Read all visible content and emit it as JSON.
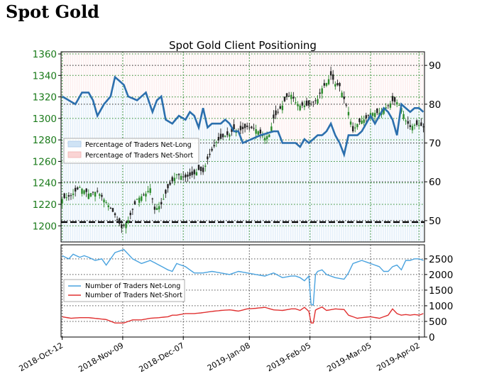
{
  "page_heading": "Spot Gold",
  "colors": {
    "price_up": "#2a8a2a",
    "price_down": "#222222",
    "long_pct_line": "#2b6fad",
    "net_long_line": "#4aa3df",
    "net_short_line": "#e03030",
    "long_fill": "#cfe3f5",
    "short_fill": "#fad4d4",
    "left_tick_color": "#1a7a1a"
  },
  "chart_data": [
    {
      "type": "line",
      "title": "Spot Gold Client Positioning",
      "left_axis": {
        "ylim": [
          1185,
          1362
        ],
        "ticks": [
          "1200",
          "1220",
          "1240",
          "1260",
          "1280",
          "1300",
          "1320",
          "1340",
          "1360"
        ]
      },
      "right_axis": {
        "ylim": [
          44.5,
          93.5
        ],
        "ticks": [
          "50",
          "60",
          "70",
          "80",
          "90"
        ]
      },
      "x_dates": [
        "2018-Oct-12",
        "2018-Nov-09",
        "2018-Dec-07",
        "2019-Jan-08",
        "2019-Feb-05",
        "2019-Mar-05",
        "2019-Apr-02"
      ],
      "grid": true,
      "legend": {
        "placement": "upper-left",
        "entries": [
          "Percentage of Traders Net-Long",
          "Percentage of Traders Net-Short"
        ]
      },
      "price_anchors": [
        [
          0,
          1225
        ],
        [
          4,
          1228
        ],
        [
          8,
          1236
        ],
        [
          12,
          1230
        ],
        [
          16,
          1232
        ],
        [
          20,
          1222
        ],
        [
          24,
          1210
        ],
        [
          27,
          1198
        ],
        [
          30,
          1205
        ],
        [
          34,
          1225
        ],
        [
          38,
          1230
        ],
        [
          40,
          1235
        ],
        [
          42,
          1215
        ],
        [
          45,
          1220
        ],
        [
          48,
          1235
        ],
        [
          52,
          1248
        ],
        [
          56,
          1245
        ],
        [
          60,
          1248
        ],
        [
          62,
          1252
        ],
        [
          64,
          1250
        ],
        [
          66,
          1262
        ],
        [
          70,
          1278
        ],
        [
          74,
          1284
        ],
        [
          76,
          1285
        ],
        [
          78,
          1290
        ],
        [
          80,
          1288
        ],
        [
          84,
          1292
        ],
        [
          88,
          1290
        ],
        [
          92,
          1282
        ],
        [
          94,
          1285
        ],
        [
          96,
          1300
        ],
        [
          100,
          1312
        ],
        [
          102,
          1320
        ],
        [
          104,
          1322
        ],
        [
          106,
          1315
        ],
        [
          108,
          1312
        ],
        [
          112,
          1312
        ],
        [
          116,
          1318
        ],
        [
          118,
          1328
        ],
        [
          120,
          1333
        ],
        [
          122,
          1340
        ],
        [
          124,
          1332
        ],
        [
          126,
          1330
        ],
        [
          128,
          1318
        ],
        [
          130,
          1306
        ],
        [
          132,
          1288
        ],
        [
          134,
          1295
        ],
        [
          136,
          1298
        ],
        [
          138,
          1300
        ],
        [
          140,
          1305
        ],
        [
          144,
          1305
        ],
        [
          148,
          1312
        ],
        [
          150,
          1316
        ],
        [
          152,
          1315
        ],
        [
          154,
          1310
        ],
        [
          156,
          1298
        ],
        [
          158,
          1292
        ],
        [
          160,
          1294
        ],
        [
          162,
          1294
        ],
        [
          164,
          1292
        ]
      ],
      "long_pct_anchors": [
        [
          0,
          82
        ],
        [
          3,
          81
        ],
        [
          6,
          80
        ],
        [
          9,
          83
        ],
        [
          12,
          83
        ],
        [
          14,
          81
        ],
        [
          16,
          77
        ],
        [
          19,
          80
        ],
        [
          22,
          82
        ],
        [
          24,
          87
        ],
        [
          26,
          86
        ],
        [
          28,
          85
        ],
        [
          30,
          82
        ],
        [
          34,
          81
        ],
        [
          38,
          83
        ],
        [
          41,
          78
        ],
        [
          43,
          81
        ],
        [
          45,
          82
        ],
        [
          47,
          76
        ],
        [
          50,
          75
        ],
        [
          53,
          77
        ],
        [
          56,
          76
        ],
        [
          58,
          78
        ],
        [
          60,
          77
        ],
        [
          62,
          74
        ],
        [
          64,
          79
        ],
        [
          66,
          74
        ],
        [
          68,
          75
        ],
        [
          72,
          75
        ],
        [
          74,
          76
        ],
        [
          76,
          75
        ],
        [
          78,
          73
        ],
        [
          80,
          73
        ],
        [
          82,
          70
        ],
        [
          86,
          71
        ],
        [
          90,
          72
        ],
        [
          96,
          73
        ],
        [
          98,
          73
        ],
        [
          100,
          70
        ],
        [
          104,
          70
        ],
        [
          106,
          70
        ],
        [
          108,
          69
        ],
        [
          110,
          71
        ],
        [
          112,
          70
        ],
        [
          114,
          71
        ],
        [
          116,
          72
        ],
        [
          118,
          72
        ],
        [
          120,
          73
        ],
        [
          122,
          75
        ],
        [
          124,
          72
        ],
        [
          126,
          70
        ],
        [
          128,
          67
        ],
        [
          130,
          72
        ],
        [
          132,
          72
        ],
        [
          134,
          72
        ],
        [
          136,
          73
        ],
        [
          138,
          75
        ],
        [
          140,
          77
        ],
        [
          142,
          75
        ],
        [
          144,
          77
        ],
        [
          146,
          79
        ],
        [
          148,
          78
        ],
        [
          150,
          76
        ],
        [
          152,
          72
        ],
        [
          154,
          80
        ],
        [
          156,
          79
        ],
        [
          158,
          78
        ],
        [
          160,
          79
        ],
        [
          162,
          79
        ],
        [
          164,
          78
        ]
      ],
      "net_long_anchors": [
        [
          0,
          2600
        ],
        [
          3,
          2500
        ],
        [
          5,
          2650
        ],
        [
          8,
          2550
        ],
        [
          10,
          2600
        ],
        [
          12,
          2550
        ],
        [
          15,
          2450
        ],
        [
          18,
          2500
        ],
        [
          20,
          2300
        ],
        [
          24,
          2700
        ],
        [
          28,
          2800
        ],
        [
          32,
          2500
        ],
        [
          36,
          2350
        ],
        [
          40,
          2450
        ],
        [
          44,
          2300
        ],
        [
          48,
          2150
        ],
        [
          50,
          2100
        ],
        [
          52,
          2350
        ],
        [
          56,
          2250
        ],
        [
          60,
          2050
        ],
        [
          64,
          2050
        ],
        [
          68,
          2100
        ],
        [
          72,
          2050
        ],
        [
          76,
          2000
        ],
        [
          80,
          2100
        ],
        [
          84,
          2050
        ],
        [
          88,
          2000
        ],
        [
          92,
          1950
        ],
        [
          96,
          2050
        ],
        [
          100,
          1900
        ],
        [
          104,
          1950
        ],
        [
          106,
          1950
        ],
        [
          108,
          1900
        ],
        [
          110,
          1800
        ],
        [
          112,
          1950
        ],
        [
          113,
          1050
        ],
        [
          114,
          1020
        ],
        [
          115,
          2000
        ],
        [
          116,
          2100
        ],
        [
          118,
          2150
        ],
        [
          120,
          2000
        ],
        [
          124,
          1900
        ],
        [
          128,
          1850
        ],
        [
          130,
          2050
        ],
        [
          132,
          2350
        ],
        [
          134,
          2400
        ],
        [
          136,
          2450
        ],
        [
          140,
          2350
        ],
        [
          144,
          2250
        ],
        [
          146,
          2100
        ],
        [
          148,
          2100
        ],
        [
          150,
          2250
        ],
        [
          152,
          2300
        ],
        [
          154,
          2150
        ],
        [
          156,
          2450
        ],
        [
          158,
          2450
        ],
        [
          160,
          2500
        ],
        [
          162,
          2500
        ],
        [
          164,
          2450
        ]
      ],
      "net_short_anchors": [
        [
          0,
          650
        ],
        [
          4,
          600
        ],
        [
          8,
          620
        ],
        [
          12,
          620
        ],
        [
          16,
          590
        ],
        [
          20,
          560
        ],
        [
          24,
          450
        ],
        [
          28,
          450
        ],
        [
          32,
          550
        ],
        [
          36,
          550
        ],
        [
          40,
          600
        ],
        [
          44,
          620
        ],
        [
          48,
          650
        ],
        [
          50,
          700
        ],
        [
          52,
          700
        ],
        [
          56,
          750
        ],
        [
          60,
          750
        ],
        [
          64,
          780
        ],
        [
          68,
          820
        ],
        [
          72,
          850
        ],
        [
          76,
          870
        ],
        [
          80,
          830
        ],
        [
          84,
          900
        ],
        [
          88,
          920
        ],
        [
          92,
          950
        ],
        [
          96,
          870
        ],
        [
          100,
          850
        ],
        [
          104,
          900
        ],
        [
          106,
          900
        ],
        [
          108,
          850
        ],
        [
          110,
          950
        ],
        [
          112,
          820
        ],
        [
          113,
          450
        ],
        [
          114,
          450
        ],
        [
          115,
          860
        ],
        [
          116,
          900
        ],
        [
          118,
          960
        ],
        [
          120,
          850
        ],
        [
          124,
          900
        ],
        [
          128,
          880
        ],
        [
          130,
          700
        ],
        [
          132,
          650
        ],
        [
          134,
          600
        ],
        [
          136,
          620
        ],
        [
          140,
          650
        ],
        [
          144,
          600
        ],
        [
          146,
          650
        ],
        [
          148,
          700
        ],
        [
          150,
          900
        ],
        [
          152,
          750
        ],
        [
          154,
          700
        ],
        [
          156,
          720
        ],
        [
          158,
          700
        ],
        [
          160,
          720
        ],
        [
          162,
          700
        ],
        [
          164,
          750
        ]
      ]
    },
    {
      "type": "line",
      "ylim": [
        0,
        2950
      ],
      "right_ticks": [
        "0",
        "500",
        "1000",
        "1500",
        "2000",
        "2500"
      ],
      "legend": {
        "placement": "middle-left",
        "entries": [
          "Number of Traders Net-Long",
          "Number of Traders Net-Short"
        ]
      },
      "series_names": [
        "Number of Traders Net-Long",
        "Number of Traders Net-Short"
      ]
    }
  ]
}
